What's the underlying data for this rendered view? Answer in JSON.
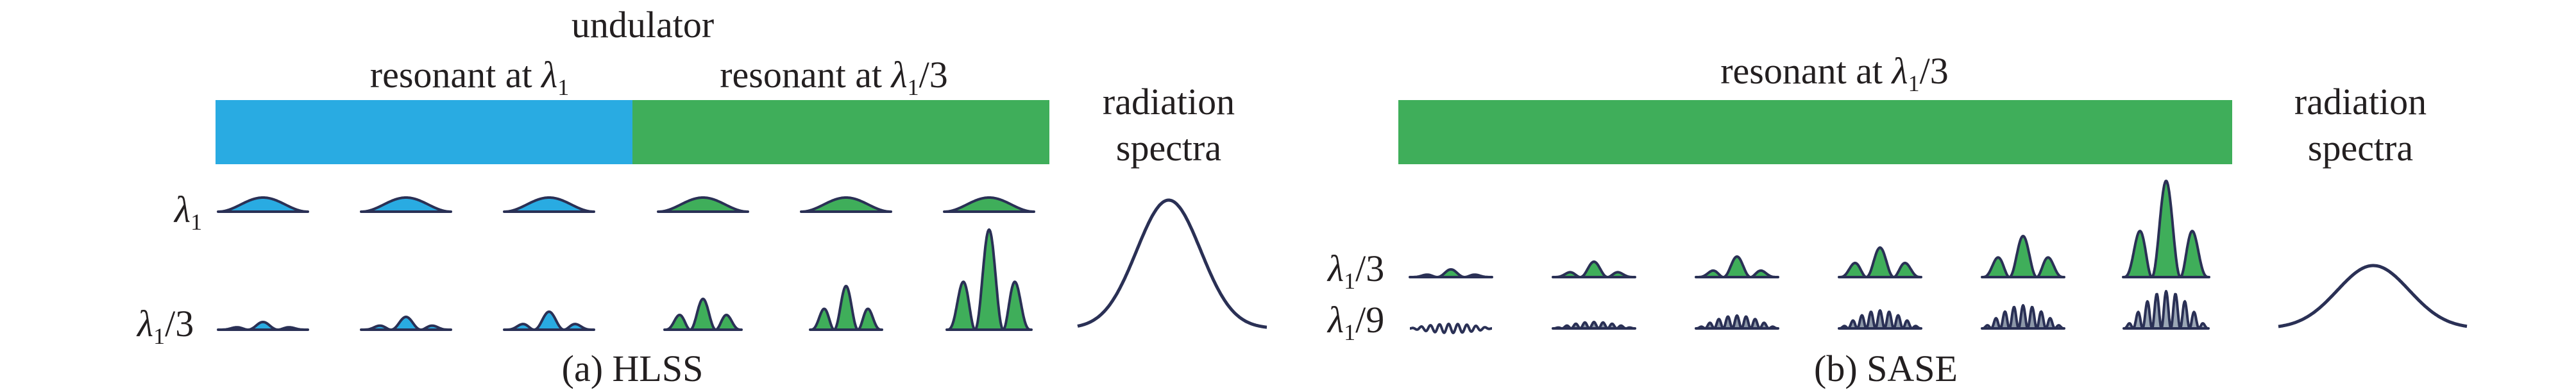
{
  "colors": {
    "blue": "#29abe2",
    "green": "#3fae5a",
    "outline": "#2a3055",
    "text": "#231f20",
    "background": "#ffffff"
  },
  "panel_a": {
    "undulator_label": "undulator",
    "section_1": {
      "prefix": "resonant at ",
      "symbol": "λ",
      "subscript": "1",
      "suffix": ""
    },
    "section_2": {
      "prefix": "resonant at ",
      "symbol": "λ",
      "subscript": "1",
      "suffix": "/3"
    },
    "spectra_label_line1": "radiation",
    "spectra_label_line2": "spectra",
    "row_1": {
      "symbol": "λ",
      "subscript": "1",
      "suffix": ""
    },
    "row_2": {
      "symbol": "λ",
      "subscript": "1",
      "suffix": "/3"
    },
    "caption": "(a) HLSS"
  },
  "panel_b": {
    "section": {
      "prefix": "resonant at ",
      "symbol": "λ",
      "subscript": "1",
      "suffix": "/3"
    },
    "spectra_label_line1": "radiation",
    "spectra_label_line2": "spectra",
    "row_1": {
      "symbol": "λ",
      "subscript": "1",
      "suffix": "/3"
    },
    "row_2": {
      "symbol": "λ",
      "subscript": "1",
      "suffix": "/9"
    },
    "caption": "(b) SASE"
  }
}
